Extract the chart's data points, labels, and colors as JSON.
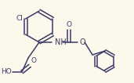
{
  "background_color": "#fdf8ec",
  "line_color": "#3a3a6a",
  "line_width": 1.1,
  "font_size": 6.5,
  "figsize": [
    1.71,
    1.06
  ],
  "dpi": 100,
  "xlim": [
    0,
    171
  ],
  "ylim": [
    0,
    106
  ]
}
